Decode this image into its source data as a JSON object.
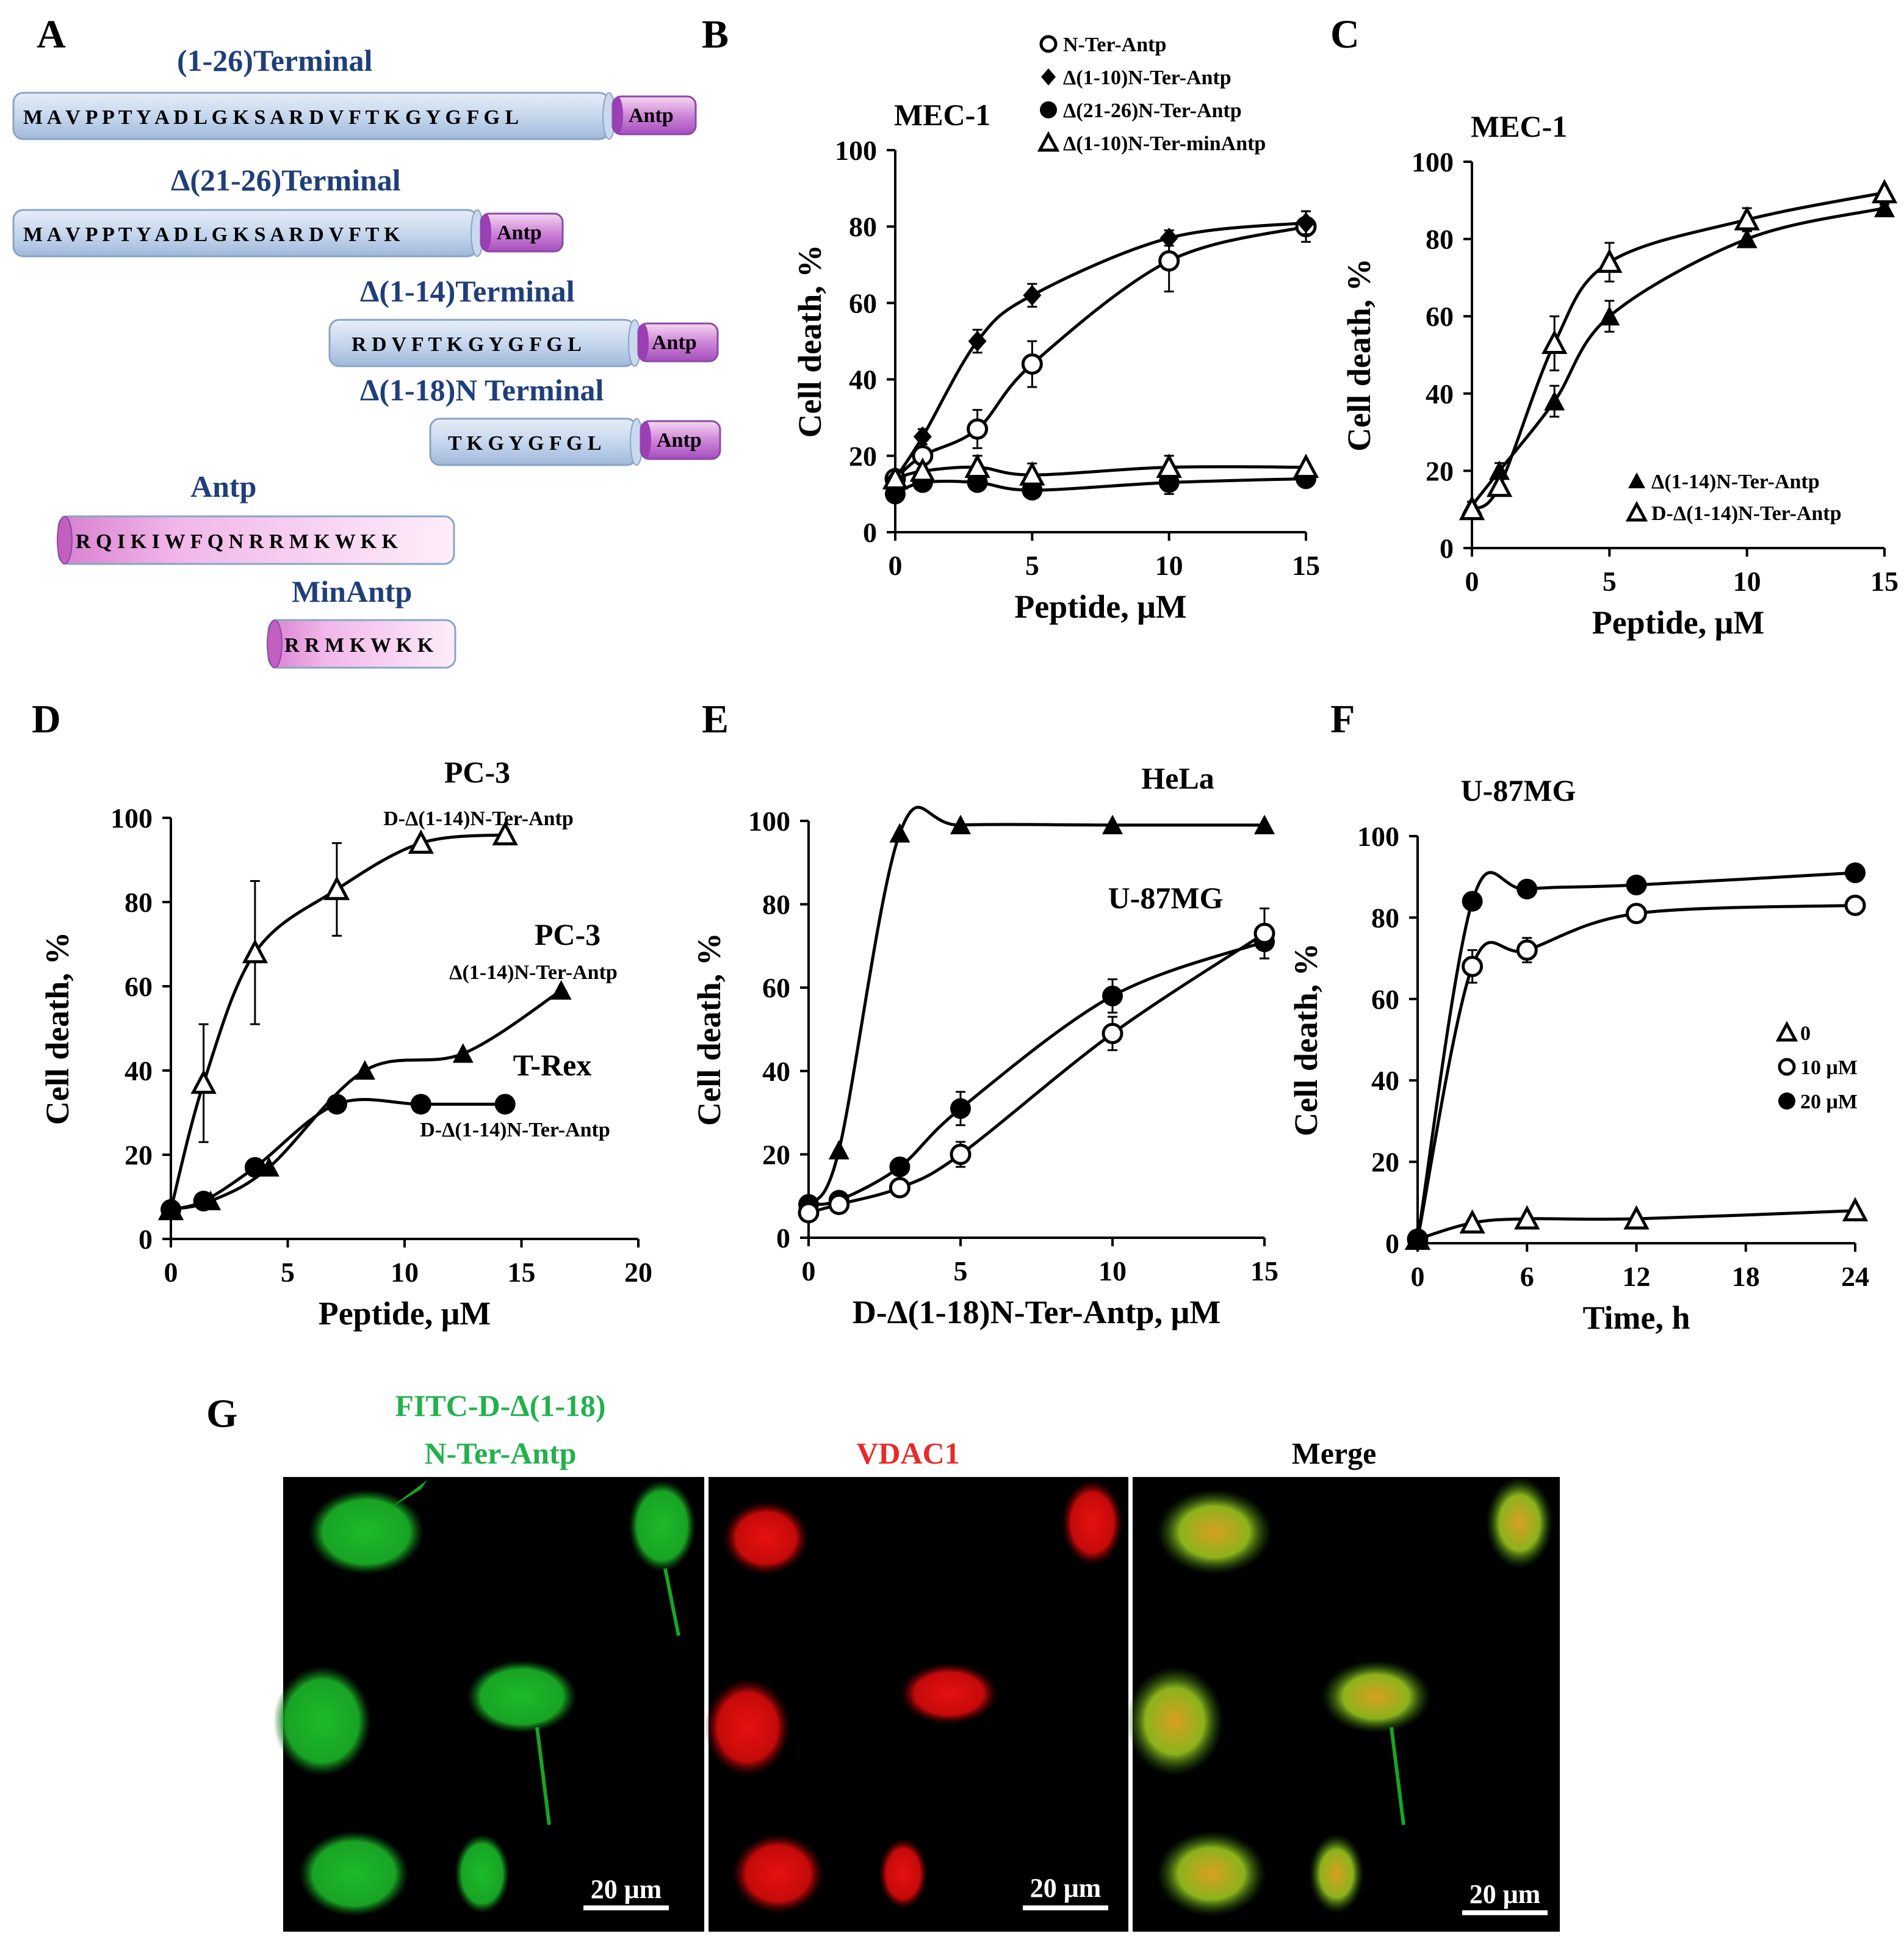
{
  "colors": {
    "blue_peptide_top": "#dbe6f4",
    "blue_peptide_bottom": "#a9c2e0",
    "antp_top": "#f2c8ee",
    "antp_bottom": "#a94fc0",
    "pink_top": "#fbe1f5",
    "pink_bottom": "#d77fd0",
    "label_blue": "#1f3f7a",
    "green": "#22b14c",
    "red": "#e82a2a"
  },
  "panels": {
    "A": "A",
    "B": "B",
    "C": "C",
    "D": "D",
    "E": "E",
    "F": "F",
    "G": "G"
  },
  "panel_A": {
    "rows": [
      {
        "label": "(1-26)Terminal",
        "sequence": "M A V P P T Y A D L G K S A R D V F T K G Y G F G L",
        "tag": "Antp"
      },
      {
        "label": "Δ(21-26)Terminal",
        "sequence": "M A V P P T Y A D L G K S A R D V F T K",
        "tag": "Antp"
      },
      {
        "label": "Δ(1-14)Terminal",
        "sequence": "R D V F T K G Y G F G L",
        "tag": "Antp"
      },
      {
        "label": "Δ(1-18)N Terminal",
        "sequence": "T K G Y G F G L",
        "tag": "Antp"
      },
      {
        "label": "Antp",
        "sequence": "R Q I K I W F Q N R R M K W K K",
        "tag": ""
      },
      {
        "label": "MinAntp",
        "sequence": "R R M K W K K",
        "tag": ""
      }
    ]
  },
  "chart_data": [
    {
      "panel": "B",
      "type": "scatter",
      "cell_line": "MEC-1",
      "xlabel": "Peptide, μM",
      "ylabel": "Cell death, %",
      "xlim": [
        0,
        15
      ],
      "ylim": [
        0,
        100
      ],
      "xticks": [
        "0",
        "5",
        "10",
        "15"
      ],
      "yticks": [
        "0",
        "20",
        "40",
        "60",
        "80",
        "100"
      ],
      "legend_position": "top",
      "series": [
        {
          "name": "N-Ter-Antp",
          "marker": "open-circle",
          "x": [
            0,
            1,
            3,
            5,
            10,
            15
          ],
          "y": [
            14,
            20,
            27,
            44,
            71,
            80
          ],
          "err": [
            0,
            2,
            5,
            6,
            8,
            4
          ]
        },
        {
          "name": "Δ(1-10)N-Ter-Antp",
          "marker": "diamond",
          "x": [
            0,
            1,
            3,
            5,
            10,
            15
          ],
          "y": [
            14,
            25,
            50,
            62,
            77,
            81
          ],
          "err": [
            0,
            2,
            3,
            3,
            2,
            3
          ]
        },
        {
          "name": "Δ(21-26)N-Ter-Antp",
          "marker": "filled-circle",
          "x": [
            0,
            1,
            3,
            5,
            10,
            15
          ],
          "y": [
            10,
            13,
            13,
            11,
            13,
            14
          ],
          "err": [
            0,
            1,
            2,
            2,
            3,
            1
          ]
        },
        {
          "name": "Δ(1-10)N-Ter-minAntp",
          "marker": "open-triangle",
          "x": [
            0,
            1,
            3,
            5,
            10,
            15
          ],
          "y": [
            14,
            16,
            17,
            15,
            17,
            17
          ],
          "err": [
            0,
            2,
            3,
            3,
            3,
            1
          ]
        }
      ]
    },
    {
      "panel": "C",
      "type": "scatter",
      "cell_line": "MEC-1",
      "xlabel": "Peptide, μM",
      "ylabel": "Cell death, %",
      "xlim": [
        0,
        15
      ],
      "ylim": [
        0,
        100
      ],
      "xticks": [
        "0",
        "5",
        "10",
        "15"
      ],
      "yticks": [
        "0",
        "20",
        "40",
        "60",
        "80",
        "100"
      ],
      "legend_position": "bottom-right",
      "series": [
        {
          "name": "Δ(1-14)N-Ter-Antp",
          "marker": "filled-triangle",
          "x": [
            0,
            1,
            3,
            5,
            10,
            15
          ],
          "y": [
            11,
            20,
            38,
            60,
            80,
            88
          ],
          "err": [
            1,
            2,
            4,
            4,
            2,
            1
          ]
        },
        {
          "name": "D-Δ(1-14)N-Ter-Antp",
          "marker": "open-triangle",
          "x": [
            0,
            1,
            3,
            5,
            10,
            15
          ],
          "y": [
            10,
            16,
            53,
            74,
            85,
            92
          ],
          "err": [
            1,
            2,
            7,
            5,
            3,
            1
          ]
        }
      ]
    },
    {
      "panel": "D",
      "type": "scatter",
      "xlabel": "Peptide, μM",
      "ylabel": "Cell death, %",
      "xlim": [
        0,
        20
      ],
      "ylim": [
        0,
        100
      ],
      "xticks": [
        "0",
        "5",
        "10",
        "15",
        "20"
      ],
      "yticks": [
        "0",
        "20",
        "40",
        "60",
        "80",
        "100"
      ],
      "series": [
        {
          "cell_line": "PC-3",
          "name": "D-Δ(1-14)N-Ter-Antp",
          "marker": "open-triangle",
          "x": [
            0,
            1.4,
            3.6,
            7.1,
            10.7,
            14.3
          ],
          "y": [
            7,
            37,
            68,
            83,
            94,
            96
          ],
          "err": [
            0,
            14,
            17,
            11,
            1,
            1
          ]
        },
        {
          "cell_line": "PC-3",
          "name": "Δ(1-14)N-Ter-Antp",
          "marker": "filled-triangle",
          "x": [
            0,
            1.7,
            4.2,
            8.3,
            12.5,
            16.7
          ],
          "y": [
            7,
            9,
            17,
            40,
            44,
            59
          ],
          "err": [
            0,
            0,
            0,
            0,
            0,
            0
          ]
        },
        {
          "cell_line": "T-Rex",
          "name": "D-Δ(1-14)N-Ter-Antp",
          "marker": "filled-circle",
          "x": [
            0,
            1.4,
            3.6,
            7.1,
            10.7,
            14.3
          ],
          "y": [
            7,
            9,
            17,
            32,
            32,
            32
          ],
          "err": [
            0,
            0,
            0,
            0,
            0,
            0
          ]
        }
      ]
    },
    {
      "panel": "E",
      "type": "scatter",
      "xlabel": "D-Δ(1-18)N-Ter-Antp, μM",
      "ylabel": "Cell death, %",
      "xlim": [
        0,
        15
      ],
      "ylim": [
        0,
        100
      ],
      "xticks": [
        "0",
        "5",
        "10",
        "15"
      ],
      "yticks": [
        "0",
        "20",
        "40",
        "60",
        "80",
        "100"
      ],
      "series": [
        {
          "cell_line": "HeLa",
          "marker": "filled-triangle",
          "x": [
            0,
            1,
            3,
            5,
            10,
            15
          ],
          "y": [
            8,
            21,
            97,
            99,
            99,
            99
          ],
          "err": [
            0,
            0,
            0,
            0,
            0,
            0
          ]
        },
        {
          "cell_line": "U-87MG",
          "marker": "filled-circle",
          "x": [
            0,
            1,
            3,
            5,
            10,
            15
          ],
          "y": [
            8,
            9,
            17,
            31,
            58,
            71
          ],
          "err": [
            0,
            0,
            1,
            4,
            4,
            4
          ]
        },
        {
          "cell_line": "U-87MG",
          "marker": "open-circle",
          "x": [
            0,
            1,
            3,
            5,
            10,
            15
          ],
          "y": [
            6,
            8,
            12,
            20,
            49,
            73
          ],
          "err": [
            0,
            0,
            1,
            3,
            4,
            6
          ]
        }
      ]
    },
    {
      "panel": "F",
      "type": "scatter",
      "cell_line": "U-87MG",
      "xlabel": "Time, h",
      "ylabel": "Cell death, %",
      "xlim": [
        0,
        24
      ],
      "ylim": [
        0,
        100
      ],
      "xticks": [
        "0",
        "6",
        "12",
        "18",
        "24"
      ],
      "yticks": [
        "0",
        "20",
        "40",
        "60",
        "80",
        "100"
      ],
      "legend_position": "right",
      "series": [
        {
          "name": "0",
          "marker": "open-triangle",
          "x": [
            0,
            3,
            6,
            12,
            24
          ],
          "y": [
            1,
            5,
            6,
            6,
            8
          ],
          "err": [
            0,
            0,
            0,
            0,
            0
          ]
        },
        {
          "name": "10 μM",
          "marker": "open-circle",
          "x": [
            0,
            3,
            6,
            12,
            24
          ],
          "y": [
            1,
            68,
            72,
            81,
            83
          ],
          "err": [
            0,
            4,
            3,
            2,
            1
          ]
        },
        {
          "name": "20 μM",
          "marker": "filled-circle",
          "x": [
            0,
            3,
            6,
            12,
            24
          ],
          "y": [
            1,
            84,
            87,
            88,
            91
          ],
          "err": [
            0,
            2,
            1,
            2,
            1
          ]
        }
      ]
    }
  ],
  "panel_G": {
    "title_line1": "FITC-D-Δ(1-18)",
    "title_line2": "N-Ter-Antp",
    "vdac_title": "VDAC1",
    "merge_title": "Merge",
    "scale_bar": "20 μm"
  }
}
